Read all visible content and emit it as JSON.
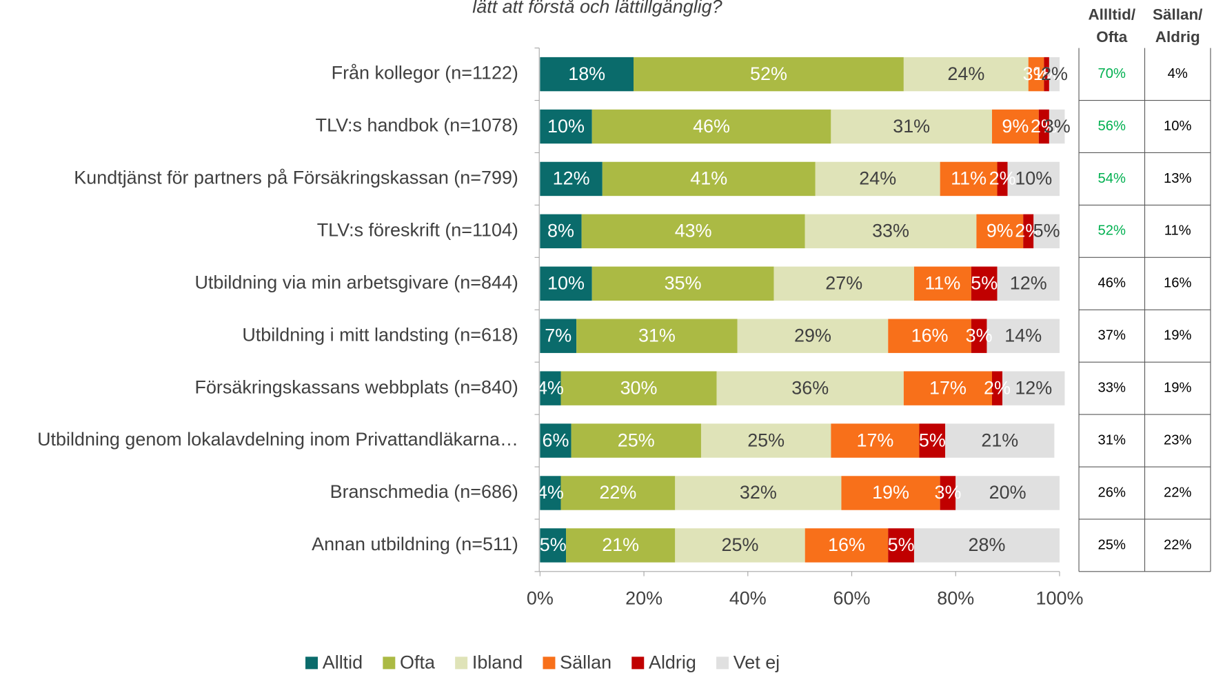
{
  "chart_data": {
    "type": "stacked_barh",
    "title": "lätt att förstå och lättillgänglig?",
    "categories": [
      "Från kollegor (n=1122)",
      "TLV:s handbok (n=1078)",
      "Kundtjänst för partners på Försäkringskassan (n=799)",
      "TLV:s föreskrift (n=1104)",
      "Utbildning via min arbetsgivare (n=844)",
      "Utbildning i mitt landsting (n=618)",
      "Försäkringskassans webbplats (n=840)",
      "Utbildning genom lokalavdelning inom Privattandläkarna…",
      "Branschmedia (n=686)",
      "Annan utbildning (n=511)"
    ],
    "series": [
      {
        "name": "Alltid",
        "color": "#0a6b6b",
        "label_color": "#ffffff",
        "values": [
          18,
          10,
          12,
          8,
          10,
          7,
          4,
          6,
          4,
          5
        ],
        "value_labels": [
          "18%",
          "10%",
          "12%",
          "8%",
          "10%",
          "7%",
          "4%",
          "6%",
          "4%",
          "5%"
        ]
      },
      {
        "name": "Ofta",
        "color": "#abba44",
        "label_color": "#ffffff",
        "values": [
          52,
          46,
          41,
          43,
          35,
          31,
          30,
          25,
          22,
          21
        ],
        "value_labels": [
          "52%",
          "46%",
          "41%",
          "43%",
          "35%",
          "31%",
          "30%",
          "25%",
          "22%",
          "21%"
        ]
      },
      {
        "name": "Ibland",
        "color": "#dfe3b8",
        "label_color": "#404040",
        "values": [
          24,
          31,
          24,
          33,
          27,
          29,
          36,
          25,
          32,
          25
        ],
        "value_labels": [
          "24%",
          "31%",
          "24%",
          "33%",
          "27%",
          "29%",
          "36%",
          "25%",
          "32%",
          "25%"
        ]
      },
      {
        "name": "Sällan",
        "color": "#f8701a",
        "label_color": "#ffffff",
        "values": [
          3,
          9,
          11,
          9,
          11,
          16,
          17,
          17,
          19,
          16
        ],
        "value_labels": [
          "3%",
          "9%",
          "11%",
          "9%",
          "11%",
          "16%",
          "17%",
          "17%",
          "19%",
          "16%"
        ]
      },
      {
        "name": "Aldrig",
        "color": "#c00000",
        "label_color": "#ffffff",
        "values": [
          1,
          2,
          2,
          2,
          5,
          3,
          2,
          5,
          3,
          5
        ],
        "value_labels": [
          "1%",
          "2%",
          "2%",
          "2%",
          "5%",
          "3%",
          "2%",
          "5%",
          "3%",
          "5%"
        ]
      },
      {
        "name": "Vet ej",
        "color": "#e0e0e0",
        "label_color": "#404040",
        "values": [
          2,
          3,
          10,
          5,
          12,
          14,
          12,
          21,
          20,
          28
        ],
        "value_labels": [
          "2%",
          "3%",
          "10%",
          "5%",
          "12%",
          "14%",
          "12%",
          "21%",
          "20%",
          "28%"
        ]
      }
    ],
    "xlim": [
      0,
      100
    ],
    "xticks": [
      {
        "value": 0,
        "label": "0%"
      },
      {
        "value": 20,
        "label": "20%"
      },
      {
        "value": 40,
        "label": "40%"
      },
      {
        "value": 60,
        "label": "60%"
      },
      {
        "value": 80,
        "label": "80%"
      },
      {
        "value": 100,
        "label": "100%"
      }
    ],
    "legend": "bottom"
  },
  "table": {
    "columns": [
      [
        "Allltid/",
        "Ofta"
      ],
      [
        "Sällan/",
        "Aldrig"
      ]
    ],
    "highlight_color": "#00b050",
    "rows": [
      {
        "cells": [
          "70%",
          "4%"
        ],
        "highlight": true
      },
      {
        "cells": [
          "56%",
          "10%"
        ],
        "highlight": true
      },
      {
        "cells": [
          "54%",
          "13%"
        ],
        "highlight": true
      },
      {
        "cells": [
          "52%",
          "11%"
        ],
        "highlight": true
      },
      {
        "cells": [
          "46%",
          "16%"
        ],
        "highlight": false
      },
      {
        "cells": [
          "37%",
          "19%"
        ],
        "highlight": false
      },
      {
        "cells": [
          "33%",
          "19%"
        ],
        "highlight": false
      },
      {
        "cells": [
          "31%",
          "23%"
        ],
        "highlight": false
      },
      {
        "cells": [
          "26%",
          "22%"
        ],
        "highlight": false
      },
      {
        "cells": [
          "25%",
          "22%"
        ],
        "highlight": false
      }
    ]
  }
}
